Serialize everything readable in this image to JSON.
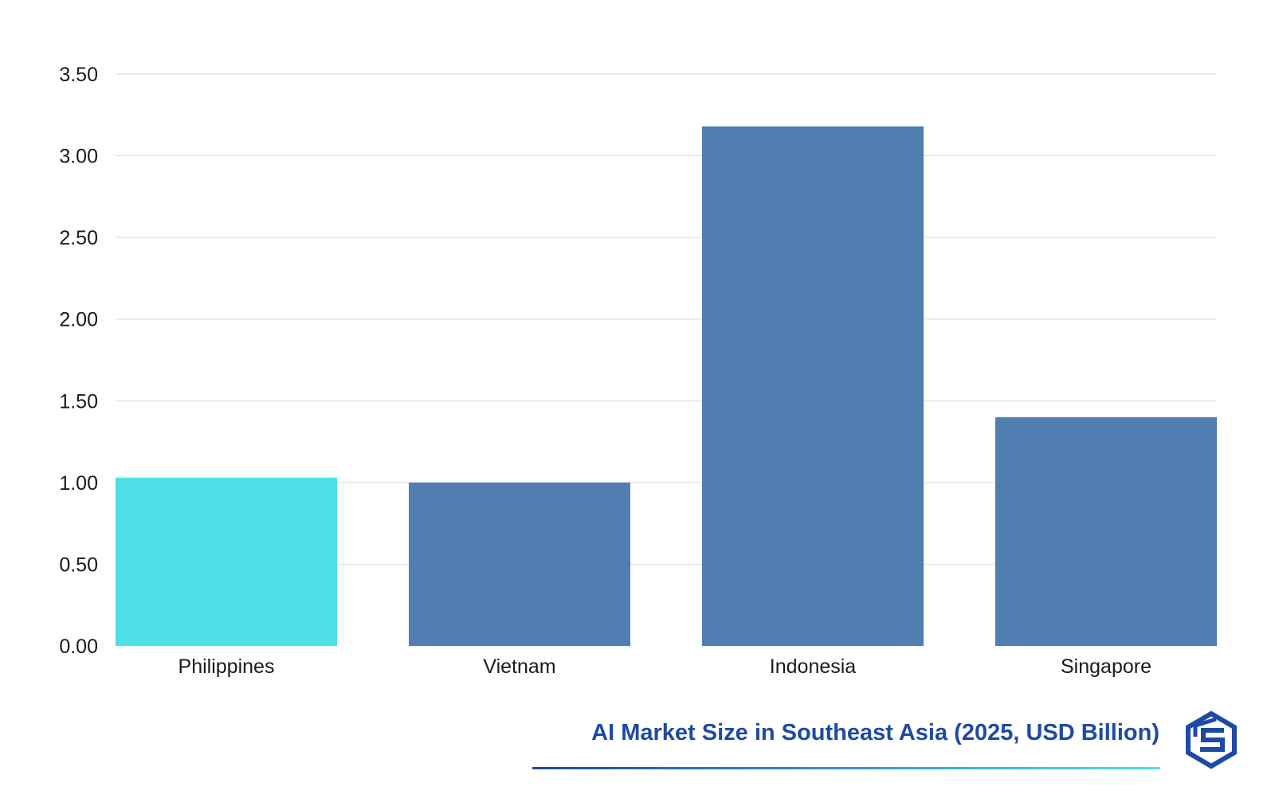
{
  "chart_data": {
    "type": "bar",
    "title": "AI Market Size in Southeast Asia (2025, USD Billion)",
    "xlabel": "",
    "ylabel": "",
    "categories": [
      "Philippines",
      "Vietnam",
      "Indonesia",
      "Singapore"
    ],
    "values": [
      1.03,
      1.0,
      3.18,
      1.4
    ],
    "highlight_index": 0,
    "ylim": [
      0,
      3.5
    ],
    "yticks": [
      "0.00",
      "0.50",
      "1.00",
      "1.50",
      "2.00",
      "2.50",
      "3.00",
      "3.50"
    ],
    "grid": true,
    "legend": "none",
    "colors": {
      "bar": "#507EB1",
      "highlight": "#4DE0E6",
      "grid": "#d9d9d9",
      "title": "#1E4AA3",
      "underline_start": "#1E4AA3",
      "underline_end": "#4DE0E6",
      "logo": "#1E4AA3"
    }
  },
  "logo": {
    "icon": "brand-logo-icon"
  }
}
